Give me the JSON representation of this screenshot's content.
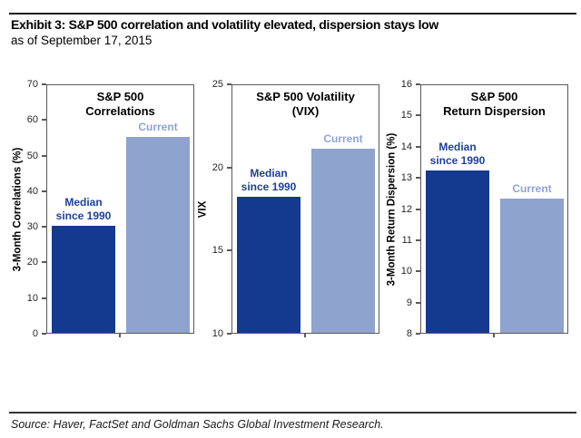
{
  "header": {
    "title": "Exhibit 3: S&P 500 correlation and volatility elevated, dispersion stays low",
    "subtitle": "as of September 17, 2015"
  },
  "source": "Source: Haver, FactSet and Goldman Sachs Global Investment Research.",
  "colors": {
    "median_bar": "#143a8f",
    "current_bar": "#8ea3cd",
    "median_label_text": "#1e3fa0",
    "current_label_text": "#8fa3d8",
    "axis_line": "#595959",
    "tick_text": "#262626"
  },
  "chart_data": [
    {
      "type": "bar",
      "title": "S&P 500 Correlations",
      "title_lines": [
        "S&P 500",
        "Correlations"
      ],
      "ylabel": "3-Month Correlations (%)",
      "ylim": [
        0,
        70
      ],
      "yticks": [
        0,
        10,
        20,
        30,
        40,
        50,
        60,
        70
      ],
      "categories": [
        "Median since 1990",
        "Current"
      ],
      "values": [
        30,
        55
      ],
      "bar_labels": [
        [
          "Median",
          "since 1990"
        ],
        [
          "Current"
        ]
      ],
      "legend_position": "none",
      "grid": false
    },
    {
      "type": "bar",
      "title": "S&P 500 Volatility (VIX)",
      "title_lines": [
        "S&P 500 Volatility",
        "(VIX)"
      ],
      "ylabel": "VIX",
      "ylim": [
        10,
        25
      ],
      "yticks": [
        10,
        15,
        20,
        25
      ],
      "categories": [
        "Median since 1990",
        "Current"
      ],
      "values": [
        18.2,
        21.1
      ],
      "bar_labels": [
        [
          "Median",
          "since 1990"
        ],
        [
          "Current"
        ]
      ],
      "legend_position": "none",
      "grid": false
    },
    {
      "type": "bar",
      "title": "S&P 500 Return Dispersion",
      "title_lines": [
        "S&P 500",
        "Return Dispersion"
      ],
      "ylabel": "3-Month Return Dispersion (%)",
      "ylim": [
        8,
        16
      ],
      "yticks": [
        8,
        9,
        10,
        11,
        12,
        13,
        14,
        15,
        16
      ],
      "categories": [
        "Median since 1990",
        "Current"
      ],
      "values": [
        13.2,
        12.3
      ],
      "bar_labels": [
        [
          "Median",
          "since 1990"
        ],
        [
          "Current"
        ]
      ],
      "legend_position": "none",
      "grid": false
    }
  ]
}
